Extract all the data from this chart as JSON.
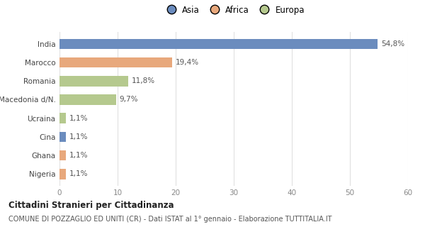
{
  "categories": [
    "Nigeria",
    "Ghana",
    "Cina",
    "Ucraina",
    "Macedonia d/N.",
    "Romania",
    "Marocco",
    "India"
  ],
  "values": [
    1.1,
    1.1,
    1.1,
    1.1,
    9.7,
    11.8,
    19.4,
    54.8
  ],
  "labels": [
    "1,1%",
    "1,1%",
    "1,1%",
    "1,1%",
    "9,7%",
    "11,8%",
    "19,4%",
    "54,8%"
  ],
  "colors": [
    "#e8a87c",
    "#e8a87c",
    "#6b8cbe",
    "#b5c98e",
    "#b5c98e",
    "#b5c98e",
    "#e8a87c",
    "#6b8cbe"
  ],
  "legend_labels": [
    "Asia",
    "Africa",
    "Europa"
  ],
  "legend_colors": [
    "#6b8cbe",
    "#e8a87c",
    "#b5c98e"
  ],
  "title": "Cittadini Stranieri per Cittadinanza",
  "subtitle": "COMUNE DI POZZAGLIO ED UNITI (CR) - Dati ISTAT al 1° gennaio - Elaborazione TUTTITALIA.IT",
  "xlim": [
    0,
    60
  ],
  "xticks": [
    0,
    10,
    20,
    30,
    40,
    50,
    60
  ],
  "bg_color": "#ffffff",
  "grid_color": "#e0e0e0",
  "bar_height": 0.55,
  "label_fontsize": 7.5,
  "tick_fontsize": 7.5,
  "legend_fontsize": 8.5,
  "title_fontsize": 8.5,
  "subtitle_fontsize": 7.0
}
